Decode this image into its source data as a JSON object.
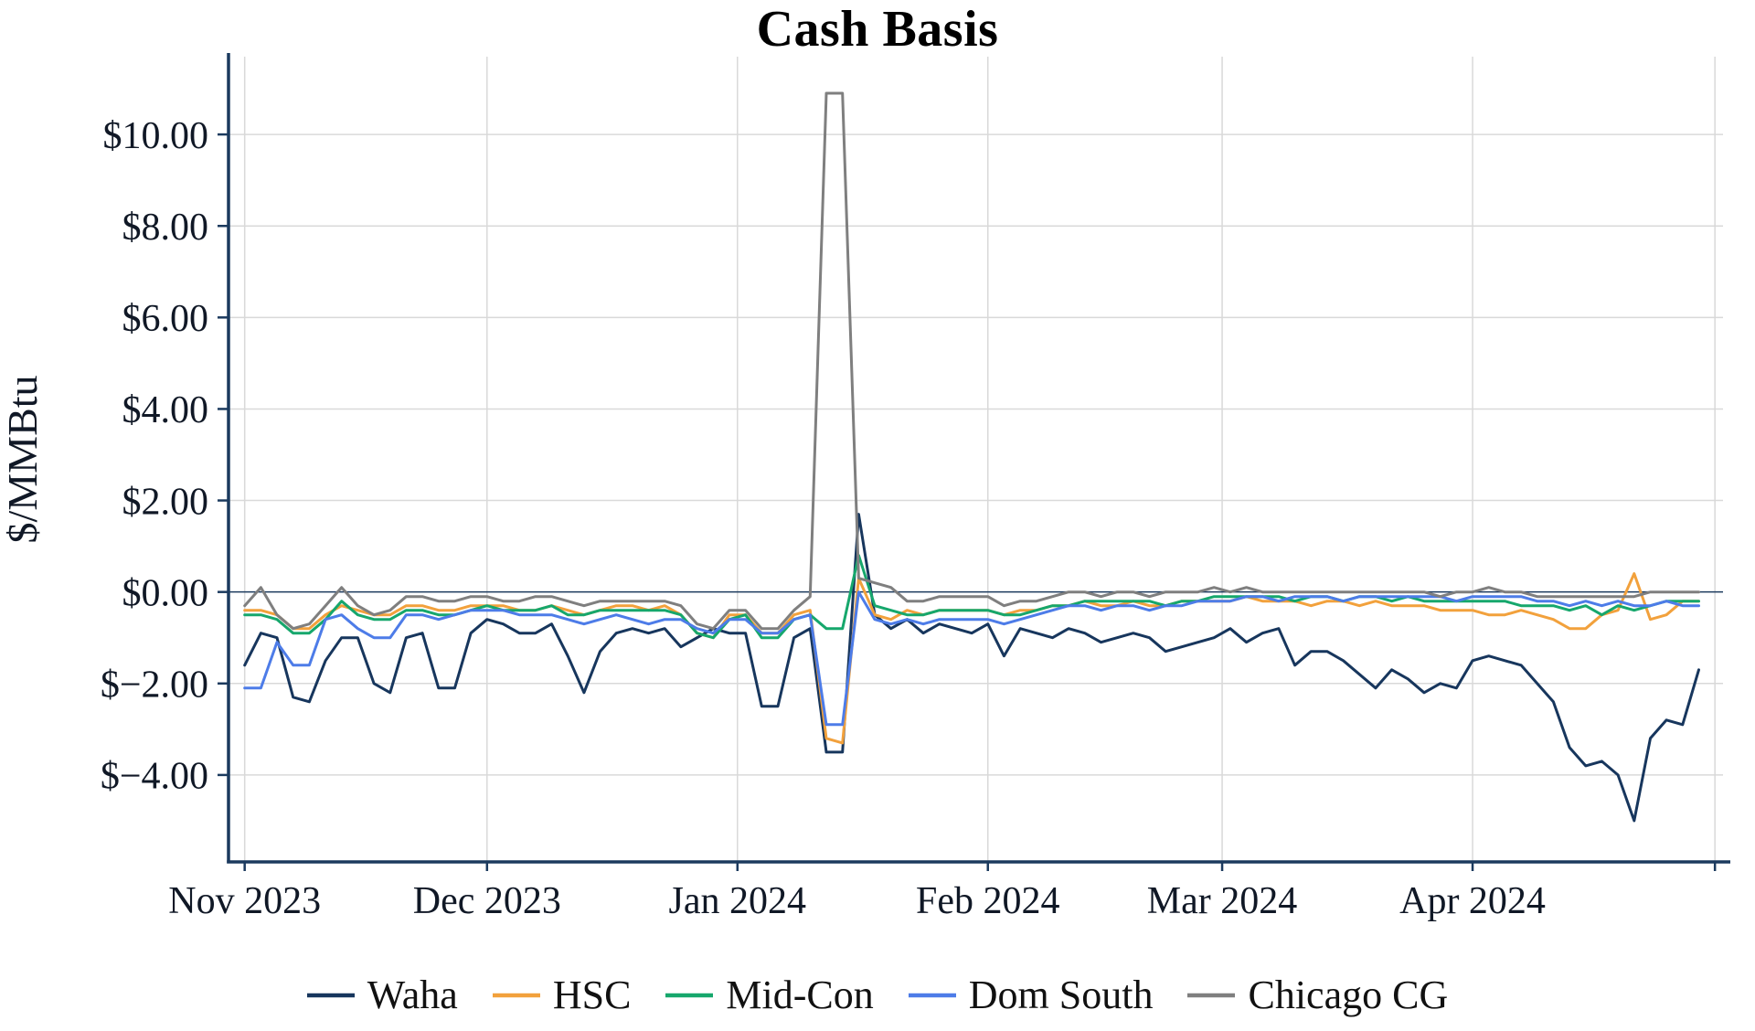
{
  "chart_data": {
    "type": "line",
    "title": "Cash Basis",
    "ylabel": "$/MMBtu",
    "xlabel": "",
    "x_unit": "days since 2023-11-01 (daily natural gas cash basis, sampled every 2 days)",
    "grid": true,
    "legend_position": "bottom",
    "zero_line": true,
    "axis_color": "#1B3A5E",
    "grid_color": "#D9D9D9",
    "tick_label_color": "#101826",
    "xlim": [
      -2,
      183
    ],
    "ylim": [
      -5.9,
      11.7
    ],
    "y_ticks": [
      {
        "v": 10,
        "label": "$10.00"
      },
      {
        "v": 8,
        "label": "$8.00"
      },
      {
        "v": 6,
        "label": "$6.00"
      },
      {
        "v": 4,
        "label": "$4.00"
      },
      {
        "v": 2,
        "label": "$2.00"
      },
      {
        "v": 0,
        "label": "$0.00"
      },
      {
        "v": -2,
        "label": "$−2.00"
      },
      {
        "v": -4,
        "label": "$−4.00"
      }
    ],
    "x_ticks": [
      {
        "day": 0,
        "label": "Nov 2023"
      },
      {
        "day": 30,
        "label": "Dec 2023"
      },
      {
        "day": 61,
        "label": "Jan 2024"
      },
      {
        "day": 92,
        "label": "Feb 2024"
      },
      {
        "day": 121,
        "label": "Mar 2024"
      },
      {
        "day": 152,
        "label": "Apr 2024"
      },
      {
        "day": 182,
        "label": ""
      }
    ],
    "x": [
      0,
      2,
      4,
      6,
      8,
      10,
      12,
      14,
      16,
      18,
      20,
      22,
      24,
      26,
      28,
      30,
      32,
      34,
      36,
      38,
      40,
      42,
      44,
      46,
      48,
      50,
      52,
      54,
      56,
      58,
      60,
      62,
      64,
      66,
      68,
      70,
      72,
      74,
      76,
      78,
      80,
      82,
      84,
      86,
      88,
      90,
      92,
      94,
      96,
      98,
      100,
      102,
      104,
      106,
      108,
      110,
      112,
      114,
      116,
      118,
      120,
      122,
      124,
      126,
      128,
      130,
      132,
      134,
      136,
      138,
      140,
      142,
      144,
      146,
      148,
      150,
      152,
      154,
      156,
      158,
      160,
      162,
      164,
      166,
      168,
      170,
      172,
      174,
      176,
      178,
      180
    ],
    "series": [
      {
        "name": "Waha",
        "color": "#17365D",
        "values": [
          -1.6,
          -0.9,
          -1.0,
          -2.3,
          -2.4,
          -1.5,
          -1.0,
          -1.0,
          -2.0,
          -2.2,
          -1.0,
          -0.9,
          -2.1,
          -2.1,
          -0.9,
          -0.6,
          -0.7,
          -0.9,
          -0.9,
          -0.7,
          -1.4,
          -2.2,
          -1.3,
          -0.9,
          -0.8,
          -0.9,
          -0.8,
          -1.2,
          -1.0,
          -0.8,
          -0.9,
          -0.9,
          -2.5,
          -2.5,
          -1.0,
          -0.8,
          -3.5,
          -3.5,
          1.7,
          -0.5,
          -0.8,
          -0.6,
          -0.9,
          -0.7,
          -0.8,
          -0.9,
          -0.7,
          -1.4,
          -0.8,
          -0.9,
          -1.0,
          -0.8,
          -0.9,
          -1.1,
          -1.0,
          -0.9,
          -1.0,
          -1.3,
          -1.2,
          -1.1,
          -1.0,
          -0.8,
          -1.1,
          -0.9,
          -0.8,
          -1.6,
          -1.3,
          -1.3,
          -1.5,
          -1.8,
          -2.1,
          -1.7,
          -1.9,
          -2.2,
          -2.0,
          -2.1,
          -1.5,
          -1.4,
          -1.5,
          -1.6,
          -2.0,
          -2.4,
          -3.4,
          -3.8,
          -3.7,
          -4.0,
          -5.0,
          -3.2,
          -2.8,
          -2.9,
          -1.7
        ]
      },
      {
        "name": "HSC",
        "color": "#F2A13C",
        "values": [
          -0.4,
          -0.4,
          -0.5,
          -0.8,
          -0.8,
          -0.5,
          -0.3,
          -0.4,
          -0.5,
          -0.5,
          -0.3,
          -0.3,
          -0.4,
          -0.4,
          -0.3,
          -0.3,
          -0.3,
          -0.4,
          -0.4,
          -0.3,
          -0.4,
          -0.5,
          -0.4,
          -0.3,
          -0.3,
          -0.4,
          -0.3,
          -0.5,
          -0.9,
          -1.0,
          -0.5,
          -0.5,
          -0.9,
          -0.9,
          -0.5,
          -0.4,
          -3.2,
          -3.3,
          0.3,
          -0.5,
          -0.6,
          -0.4,
          -0.5,
          -0.4,
          -0.4,
          -0.4,
          -0.4,
          -0.5,
          -0.4,
          -0.4,
          -0.3,
          -0.3,
          -0.2,
          -0.3,
          -0.3,
          -0.2,
          -0.3,
          -0.3,
          -0.2,
          -0.2,
          -0.2,
          -0.2,
          -0.1,
          -0.2,
          -0.2,
          -0.2,
          -0.3,
          -0.2,
          -0.2,
          -0.3,
          -0.2,
          -0.3,
          -0.3,
          -0.3,
          -0.4,
          -0.4,
          -0.4,
          -0.5,
          -0.5,
          -0.4,
          -0.5,
          -0.6,
          -0.8,
          -0.8,
          -0.5,
          -0.4,
          0.4,
          -0.6,
          -0.5,
          -0.2,
          -0.2
        ]
      },
      {
        "name": "Mid-Con",
        "color": "#16A76C",
        "values": [
          -0.5,
          -0.5,
          -0.6,
          -0.9,
          -0.9,
          -0.6,
          -0.2,
          -0.5,
          -0.6,
          -0.6,
          -0.4,
          -0.4,
          -0.5,
          -0.5,
          -0.4,
          -0.3,
          -0.4,
          -0.4,
          -0.4,
          -0.3,
          -0.5,
          -0.5,
          -0.4,
          -0.4,
          -0.4,
          -0.4,
          -0.4,
          -0.5,
          -0.9,
          -1.0,
          -0.6,
          -0.5,
          -1.0,
          -1.0,
          -0.6,
          -0.5,
          -0.8,
          -0.8,
          0.8,
          -0.3,
          -0.4,
          -0.5,
          -0.5,
          -0.4,
          -0.4,
          -0.4,
          -0.4,
          -0.5,
          -0.5,
          -0.4,
          -0.3,
          -0.3,
          -0.2,
          -0.2,
          -0.2,
          -0.2,
          -0.2,
          -0.3,
          -0.2,
          -0.2,
          -0.1,
          -0.1,
          -0.1,
          -0.1,
          -0.1,
          -0.2,
          -0.1,
          -0.1,
          -0.2,
          -0.1,
          -0.1,
          -0.2,
          -0.1,
          -0.2,
          -0.2,
          -0.2,
          -0.2,
          -0.2,
          -0.2,
          -0.3,
          -0.3,
          -0.3,
          -0.4,
          -0.3,
          -0.5,
          -0.3,
          -0.4,
          -0.3,
          -0.2,
          -0.2,
          -0.2
        ]
      },
      {
        "name": "Dom South",
        "color": "#4D7CE8",
        "values": [
          -2.1,
          -2.1,
          -1.1,
          -1.6,
          -1.6,
          -0.6,
          -0.5,
          -0.8,
          -1.0,
          -1.0,
          -0.5,
          -0.5,
          -0.6,
          -0.5,
          -0.4,
          -0.4,
          -0.4,
          -0.5,
          -0.5,
          -0.5,
          -0.6,
          -0.7,
          -0.6,
          -0.5,
          -0.6,
          -0.7,
          -0.6,
          -0.6,
          -0.8,
          -0.9,
          -0.6,
          -0.6,
          -0.9,
          -0.9,
          -0.6,
          -0.5,
          -2.9,
          -2.9,
          0.0,
          -0.6,
          -0.7,
          -0.6,
          -0.7,
          -0.6,
          -0.6,
          -0.6,
          -0.6,
          -0.7,
          -0.6,
          -0.5,
          -0.4,
          -0.3,
          -0.3,
          -0.4,
          -0.3,
          -0.3,
          -0.4,
          -0.3,
          -0.3,
          -0.2,
          -0.2,
          -0.2,
          -0.1,
          -0.1,
          -0.2,
          -0.1,
          -0.1,
          -0.1,
          -0.2,
          -0.1,
          -0.1,
          -0.1,
          -0.1,
          -0.1,
          -0.1,
          -0.2,
          -0.1,
          -0.1,
          -0.1,
          -0.1,
          -0.2,
          -0.2,
          -0.3,
          -0.2,
          -0.3,
          -0.2,
          -0.3,
          -0.3,
          -0.2,
          -0.3,
          -0.3
        ]
      },
      {
        "name": "Chicago CG",
        "color": "#7F7F7F",
        "values": [
          -0.3,
          0.1,
          -0.5,
          -0.8,
          -0.7,
          -0.3,
          0.1,
          -0.3,
          -0.5,
          -0.4,
          -0.1,
          -0.1,
          -0.2,
          -0.2,
          -0.1,
          -0.1,
          -0.2,
          -0.2,
          -0.1,
          -0.1,
          -0.2,
          -0.3,
          -0.2,
          -0.2,
          -0.2,
          -0.2,
          -0.2,
          -0.3,
          -0.7,
          -0.8,
          -0.4,
          -0.4,
          -0.8,
          -0.8,
          -0.4,
          -0.1,
          10.9,
          10.9,
          0.3,
          0.2,
          0.1,
          -0.2,
          -0.2,
          -0.1,
          -0.1,
          -0.1,
          -0.1,
          -0.3,
          -0.2,
          -0.2,
          -0.1,
          0.0,
          0.0,
          -0.1,
          0.0,
          0.0,
          -0.1,
          0.0,
          0.0,
          0.0,
          0.1,
          0.0,
          0.1,
          0.0,
          0.0,
          0.0,
          0.0,
          0.0,
          0.0,
          0.0,
          0.0,
          0.0,
          0.0,
          0.0,
          -0.1,
          0.0,
          0.0,
          0.1,
          0.0,
          0.0,
          -0.1,
          -0.1,
          -0.1,
          -0.1,
          -0.1,
          -0.1,
          -0.1,
          0.0,
          0.0,
          0.0,
          0.0
        ]
      }
    ]
  }
}
